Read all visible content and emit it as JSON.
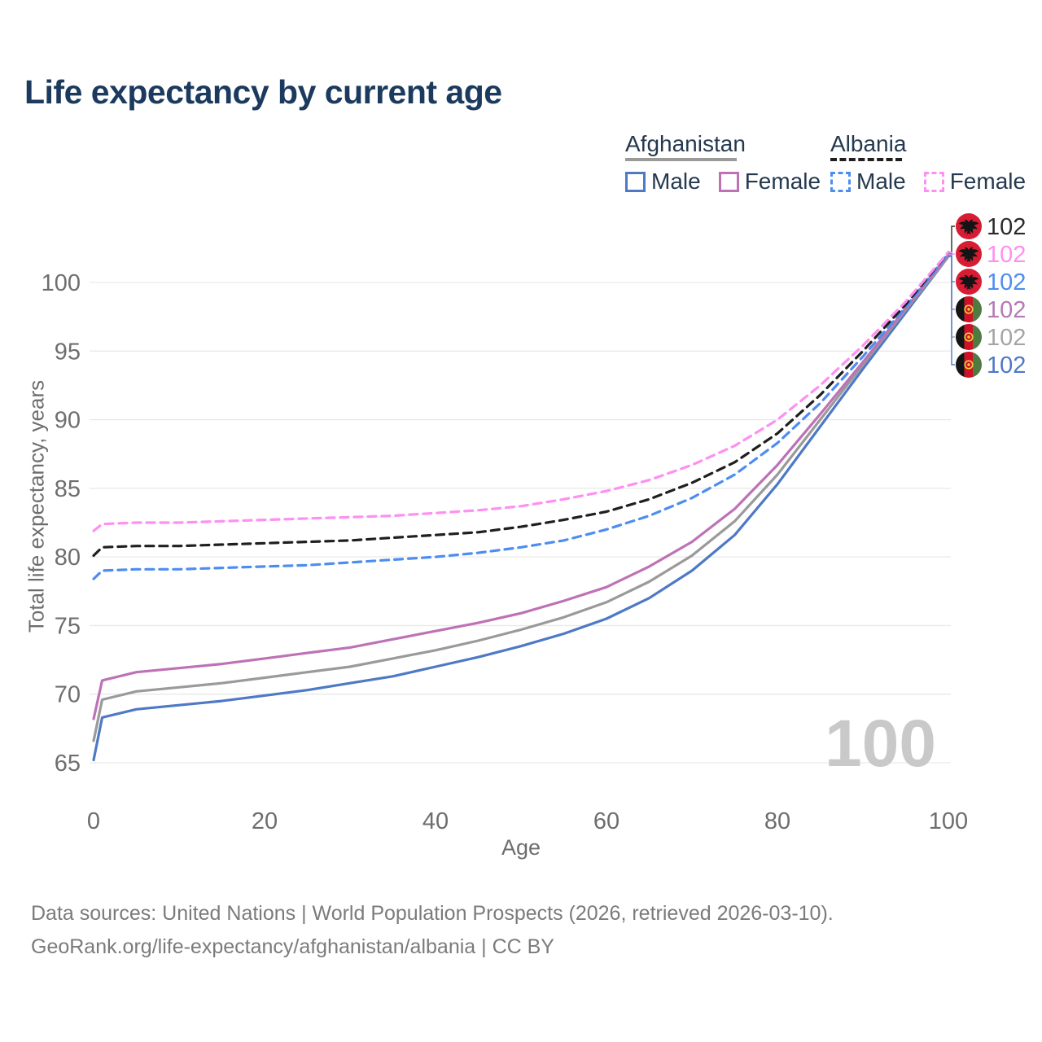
{
  "title": "Life expectancy by current age",
  "legend": {
    "groups": [
      {
        "name": "Afghanistan",
        "line_style": "solid",
        "both_color": "#9a9a9a",
        "underline_width": 137,
        "items": [
          {
            "label": "Male",
            "color": "#4e79c5"
          },
          {
            "label": "Female",
            "color": "#bd72b5"
          }
        ]
      },
      {
        "name": "Albania",
        "line_style": "dashed",
        "both_color": "#1f1f1f",
        "underline_width": 88,
        "items": [
          {
            "label": "Male",
            "color": "#4d8df2"
          },
          {
            "label": "Female",
            "color": "#ff8ff0"
          }
        ]
      }
    ]
  },
  "axes": {
    "x": {
      "title": "Age",
      "ticks": [
        0,
        20,
        40,
        60,
        80,
        100
      ],
      "range": [
        0,
        100
      ]
    },
    "y": {
      "title": "Total life expectancy, years",
      "ticks": [
        65,
        70,
        75,
        80,
        85,
        90,
        95,
        100
      ],
      "range": [
        63.5,
        102.5
      ],
      "grid": true
    }
  },
  "watermark": "100",
  "chart_data": {
    "type": "line",
    "title": "Life expectancy by current age",
    "xlabel": "Age",
    "ylabel": "Total life expectancy, years",
    "x": [
      0,
      1,
      5,
      10,
      15,
      20,
      25,
      30,
      35,
      40,
      45,
      50,
      55,
      60,
      65,
      70,
      75,
      80,
      85,
      90,
      95,
      100
    ],
    "series": [
      {
        "name": "Afghanistan Male",
        "country": "Afghanistan",
        "sex": "male",
        "color": "#4e79c5",
        "dash": false,
        "values": [
          65.2,
          68.3,
          68.9,
          69.2,
          69.5,
          69.9,
          70.3,
          70.8,
          71.3,
          72.0,
          72.7,
          73.5,
          74.4,
          75.5,
          77.0,
          79.0,
          81.6,
          85.3,
          89.5,
          93.7,
          97.8,
          101.9
        ]
      },
      {
        "name": "Afghanistan Both sexes",
        "country": "Afghanistan",
        "sex": "both",
        "color": "#9a9a9a",
        "dash": false,
        "values": [
          66.6,
          69.6,
          70.2,
          70.5,
          70.8,
          71.2,
          71.6,
          72.0,
          72.6,
          73.2,
          73.9,
          74.7,
          75.6,
          76.7,
          78.2,
          80.1,
          82.6,
          86.0,
          90.0,
          94.0,
          98.0,
          101.9
        ]
      },
      {
        "name": "Afghanistan Female",
        "country": "Afghanistan",
        "sex": "female",
        "color": "#bd72b5",
        "dash": false,
        "values": [
          68.2,
          71.0,
          71.6,
          71.9,
          72.2,
          72.6,
          73.0,
          73.4,
          74.0,
          74.6,
          75.2,
          75.9,
          76.8,
          77.8,
          79.3,
          81.1,
          83.5,
          86.7,
          90.4,
          94.2,
          98.1,
          102.0
        ]
      },
      {
        "name": "Albania Male",
        "country": "Albania",
        "sex": "male",
        "color": "#4d8df2",
        "dash": true,
        "values": [
          78.4,
          79.0,
          79.1,
          79.1,
          79.2,
          79.3,
          79.4,
          79.6,
          79.8,
          80.0,
          80.3,
          80.7,
          81.2,
          82.0,
          83.0,
          84.3,
          86.0,
          88.3,
          91.2,
          94.6,
          98.2,
          102.1
        ]
      },
      {
        "name": "Albania Both sexes",
        "country": "Albania",
        "sex": "both",
        "color": "#1f1f1f",
        "dash": true,
        "values": [
          80.1,
          80.7,
          80.8,
          80.8,
          80.9,
          81.0,
          81.1,
          81.2,
          81.4,
          81.6,
          81.8,
          82.2,
          82.7,
          83.3,
          84.2,
          85.4,
          86.9,
          89.0,
          91.8,
          95.0,
          98.4,
          102.2
        ]
      },
      {
        "name": "Albania Female",
        "country": "Albania",
        "sex": "female",
        "color": "#ff8ff0",
        "dash": true,
        "values": [
          81.9,
          82.4,
          82.5,
          82.5,
          82.6,
          82.7,
          82.8,
          82.9,
          83.0,
          83.2,
          83.4,
          83.7,
          84.2,
          84.8,
          85.6,
          86.7,
          88.1,
          90.0,
          92.5,
          95.4,
          98.6,
          102.2
        ]
      }
    ],
    "end_labels": [
      {
        "series": "Albania Both sexes",
        "flag": "albania",
        "value": "102",
        "color": "#2b2b2b"
      },
      {
        "series": "Albania Female",
        "flag": "albania",
        "value": "102",
        "color": "#ff8ff0"
      },
      {
        "series": "Albania Male",
        "flag": "albania",
        "value": "102",
        "color": "#4d8df2"
      },
      {
        "series": "Afghanistan Female",
        "flag": "afghanistan",
        "value": "102",
        "color": "#b678b6"
      },
      {
        "series": "Afghanistan Both sexes",
        "flag": "afghanistan",
        "value": "102",
        "color": "#a5a5a5"
      },
      {
        "series": "Afghanistan Male",
        "flag": "afghanistan",
        "value": "102",
        "color": "#4e79c5"
      }
    ]
  },
  "footer": {
    "line1": "Data sources: United Nations | World Population Prospects (2026, retrieved 2026-03-10).",
    "line2": "GeoRank.org/life-expectancy/afghanistan/albania | CC BY"
  }
}
